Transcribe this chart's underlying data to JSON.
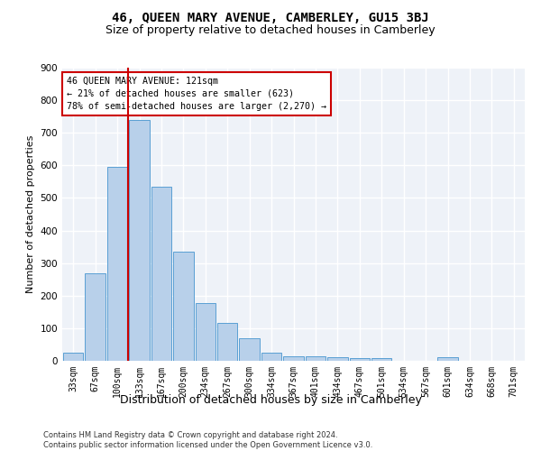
{
  "title": "46, QUEEN MARY AVENUE, CAMBERLEY, GU15 3BJ",
  "subtitle": "Size of property relative to detached houses in Camberley",
  "xlabel": "Distribution of detached houses by size in Camberley",
  "ylabel": "Number of detached properties",
  "categories": [
    "33sqm",
    "67sqm",
    "100sqm",
    "133sqm",
    "167sqm",
    "200sqm",
    "234sqm",
    "267sqm",
    "300sqm",
    "334sqm",
    "367sqm",
    "401sqm",
    "434sqm",
    "467sqm",
    "501sqm",
    "534sqm",
    "567sqm",
    "601sqm",
    "634sqm",
    "668sqm",
    "701sqm"
  ],
  "values": [
    25,
    270,
    595,
    740,
    535,
    335,
    178,
    117,
    68,
    25,
    14,
    14,
    10,
    9,
    9,
    0,
    0,
    10,
    0,
    0,
    0
  ],
  "bar_color": "#b8d0ea",
  "bar_edge_color": "#5a9fd4",
  "vline_color": "#cc0000",
  "annotation_line1": "46 QUEEN MARY AVENUE: 121sqm",
  "annotation_line2": "← 21% of detached houses are smaller (623)",
  "annotation_line3": "78% of semi-detached houses are larger (2,270) →",
  "annotation_box_color": "#ffffff",
  "annotation_box_edge_color": "#cc0000",
  "footer_text": "Contains HM Land Registry data © Crown copyright and database right 2024.\nContains public sector information licensed under the Open Government Licence v3.0.",
  "ylim": [
    0,
    900
  ],
  "yticks": [
    0,
    100,
    200,
    300,
    400,
    500,
    600,
    700,
    800,
    900
  ],
  "background_color": "#eef2f8",
  "grid_color": "#ffffff",
  "title_fontsize": 10,
  "subtitle_fontsize": 9,
  "tick_fontsize": 7,
  "ylabel_fontsize": 8,
  "xlabel_fontsize": 9,
  "footer_fontsize": 6
}
